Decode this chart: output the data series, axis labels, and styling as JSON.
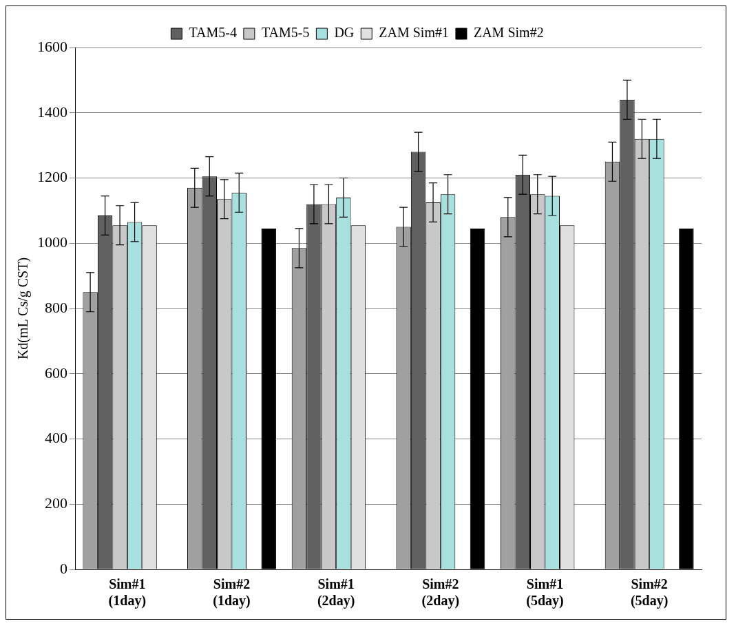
{
  "chart_data": {
    "type": "bar",
    "ylabel": "Kd(mL Cs/g CST)",
    "categories": [
      "Sim#1 (1day)",
      "Sim#2 (1day)",
      "Sim#1 (2day)",
      "Sim#2 (2day)",
      "Sim#1 (5day)",
      "Sim#2 (5day)"
    ],
    "series": [
      {
        "color": "#a0a0a0",
        "values": [
          850,
          1170,
          985,
          1050,
          1080,
          1250
        ],
        "errors": [
          60,
          60,
          60,
          60,
          60,
          60
        ]
      },
      {
        "name": "TAM5-4",
        "color": "#606060",
        "values": [
          1085,
          1205,
          1120,
          1280,
          1210,
          1440
        ],
        "errors": [
          60,
          60,
          60,
          60,
          60,
          60
        ]
      },
      {
        "name": "TAM5-5",
        "color": "#c8c8c8",
        "values": [
          1055,
          1135,
          1120,
          1125,
          1150,
          1320
        ],
        "errors": [
          60,
          60,
          60,
          60,
          60,
          60
        ]
      },
      {
        "name": "DG",
        "color": "#a8e0e0",
        "values": [
          1065,
          1155,
          1140,
          1150,
          1145,
          1320
        ],
        "errors": [
          60,
          60,
          60,
          60,
          60,
          60
        ]
      },
      {
        "name": "ZAM Sim#1",
        "color": "#e0e0e0",
        "values": [
          1055,
          null,
          1055,
          null,
          1055,
          null
        ]
      },
      {
        "name": "ZAM Sim#2",
        "color": "#000000",
        "values": [
          null,
          1045,
          null,
          1045,
          null,
          1045
        ]
      }
    ],
    "ylim": [
      0,
      1600
    ],
    "yticks": [
      0,
      200,
      400,
      600,
      800,
      1000,
      1200,
      1400,
      1600
    ],
    "grid": "y",
    "legend": "top"
  }
}
